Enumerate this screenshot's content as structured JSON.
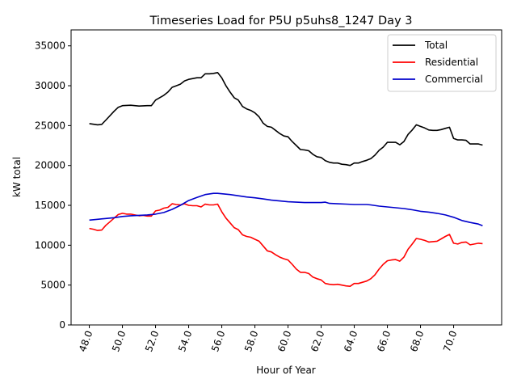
{
  "chart_data": {
    "type": "line",
    "title": "Timeseries Load for P5U p5uhs8_1247  Day 3",
    "xlabel": "Hour of Year",
    "ylabel": "kW total",
    "xlim": [
      46.9,
      72.9
    ],
    "ylim": [
      0,
      37000
    ],
    "xticks": [
      "48.0",
      "50.0",
      "52.0",
      "54.0",
      "56.0",
      "58.0",
      "60.0",
      "62.0",
      "64.0",
      "66.0",
      "68.0",
      "70.0"
    ],
    "xtick_values": [
      48,
      50,
      52,
      54,
      56,
      58,
      60,
      62,
      64,
      66,
      68,
      70
    ],
    "yticks": [
      "0",
      "5000",
      "10000",
      "15000",
      "20000",
      "25000",
      "30000",
      "35000"
    ],
    "ytick_values": [
      0,
      5000,
      10000,
      15000,
      20000,
      25000,
      30000,
      35000
    ],
    "legend_position": "top-right",
    "series": [
      {
        "name": "Total",
        "color": "#000000",
        "points": [
          [
            48,
            25250
          ],
          [
            48.5,
            25100
          ],
          [
            48.75,
            25150
          ],
          [
            49,
            25700
          ],
          [
            49.5,
            26800
          ],
          [
            49.75,
            27300
          ],
          [
            50,
            27500
          ],
          [
            50.5,
            27550
          ],
          [
            50.75,
            27500
          ],
          [
            51,
            27450
          ],
          [
            51.5,
            27500
          ],
          [
            51.75,
            27500
          ],
          [
            52,
            28200
          ],
          [
            52.5,
            28800
          ],
          [
            52.75,
            29200
          ],
          [
            53,
            29800
          ],
          [
            53.25,
            30000
          ],
          [
            53.5,
            30200
          ],
          [
            53.75,
            30600
          ],
          [
            54,
            30800
          ],
          [
            54.5,
            31000
          ],
          [
            54.75,
            31000
          ],
          [
            55,
            31500
          ],
          [
            55.25,
            31500
          ],
          [
            55.5,
            31550
          ],
          [
            55.75,
            31650
          ],
          [
            56,
            31000
          ],
          [
            56.25,
            30000
          ],
          [
            56.5,
            29200
          ],
          [
            56.75,
            28500
          ],
          [
            57,
            28200
          ],
          [
            57.25,
            27400
          ],
          [
            57.5,
            27100
          ],
          [
            57.75,
            26900
          ],
          [
            58,
            26600
          ],
          [
            58.25,
            26100
          ],
          [
            58.5,
            25300
          ],
          [
            58.75,
            24900
          ],
          [
            59,
            24800
          ],
          [
            59.25,
            24400
          ],
          [
            59.5,
            24000
          ],
          [
            59.75,
            23700
          ],
          [
            60,
            23600
          ],
          [
            60.25,
            23000
          ],
          [
            60.5,
            22500
          ],
          [
            60.75,
            22000
          ],
          [
            61,
            21950
          ],
          [
            61.25,
            21850
          ],
          [
            61.5,
            21400
          ],
          [
            61.75,
            21100
          ],
          [
            62,
            21000
          ],
          [
            62.25,
            20600
          ],
          [
            62.5,
            20400
          ],
          [
            62.75,
            20300
          ],
          [
            63,
            20300
          ],
          [
            63.25,
            20150
          ],
          [
            63.5,
            20100
          ],
          [
            63.75,
            20000
          ],
          [
            64,
            20300
          ],
          [
            64.25,
            20300
          ],
          [
            64.5,
            20500
          ],
          [
            64.75,
            20650
          ],
          [
            65,
            20850
          ],
          [
            65.25,
            21300
          ],
          [
            65.5,
            21900
          ],
          [
            65.75,
            22300
          ],
          [
            66,
            22900
          ],
          [
            66.25,
            22900
          ],
          [
            66.5,
            22900
          ],
          [
            66.75,
            22600
          ],
          [
            67,
            23000
          ],
          [
            67.25,
            23900
          ],
          [
            67.5,
            24450
          ],
          [
            67.75,
            25100
          ],
          [
            68,
            24900
          ],
          [
            68.25,
            24700
          ],
          [
            68.5,
            24450
          ],
          [
            68.75,
            24400
          ],
          [
            69,
            24400
          ],
          [
            69.25,
            24500
          ],
          [
            69.5,
            24650
          ],
          [
            69.75,
            24800
          ],
          [
            70,
            23400
          ],
          [
            70.25,
            23200
          ],
          [
            70.5,
            23200
          ],
          [
            70.75,
            23150
          ],
          [
            71,
            22700
          ],
          [
            71.25,
            22700
          ],
          [
            71.5,
            22700
          ],
          [
            71.75,
            22550
          ]
        ]
      },
      {
        "name": "Residential",
        "color": "#ff0000",
        "points": [
          [
            48,
            12100
          ],
          [
            48.25,
            12000
          ],
          [
            48.5,
            11850
          ],
          [
            48.75,
            11900
          ],
          [
            49,
            12500
          ],
          [
            49.25,
            12950
          ],
          [
            49.5,
            13400
          ],
          [
            49.75,
            13850
          ],
          [
            50,
            14000
          ],
          [
            50.25,
            13900
          ],
          [
            50.5,
            13900
          ],
          [
            50.75,
            13800
          ],
          [
            51,
            13700
          ],
          [
            51.25,
            13750
          ],
          [
            51.5,
            13650
          ],
          [
            51.75,
            13650
          ],
          [
            52,
            14300
          ],
          [
            52.25,
            14400
          ],
          [
            52.5,
            14650
          ],
          [
            52.75,
            14750
          ],
          [
            53,
            15200
          ],
          [
            53.25,
            15100
          ],
          [
            53.5,
            15050
          ],
          [
            53.75,
            15200
          ],
          [
            54,
            15000
          ],
          [
            54.25,
            14950
          ],
          [
            54.5,
            14950
          ],
          [
            54.75,
            14800
          ],
          [
            55,
            15150
          ],
          [
            55.25,
            15050
          ],
          [
            55.5,
            15050
          ],
          [
            55.75,
            15150
          ],
          [
            56,
            14200
          ],
          [
            56.25,
            13400
          ],
          [
            56.5,
            12800
          ],
          [
            56.75,
            12200
          ],
          [
            57,
            11950
          ],
          [
            57.25,
            11300
          ],
          [
            57.5,
            11100
          ],
          [
            57.75,
            11000
          ],
          [
            58,
            10750
          ],
          [
            58.25,
            10500
          ],
          [
            58.5,
            9900
          ],
          [
            58.75,
            9300
          ],
          [
            59,
            9150
          ],
          [
            59.25,
            8800
          ],
          [
            59.5,
            8500
          ],
          [
            59.75,
            8300
          ],
          [
            60,
            8150
          ],
          [
            60.25,
            7600
          ],
          [
            60.5,
            7000
          ],
          [
            60.75,
            6600
          ],
          [
            61,
            6600
          ],
          [
            61.25,
            6450
          ],
          [
            61.5,
            6000
          ],
          [
            61.75,
            5800
          ],
          [
            62,
            5650
          ],
          [
            62.25,
            5200
          ],
          [
            62.5,
            5100
          ],
          [
            62.75,
            5050
          ],
          [
            63,
            5100
          ],
          [
            63.25,
            5000
          ],
          [
            63.5,
            4900
          ],
          [
            63.75,
            4850
          ],
          [
            64,
            5200
          ],
          [
            64.25,
            5200
          ],
          [
            64.5,
            5350
          ],
          [
            64.75,
            5500
          ],
          [
            65,
            5800
          ],
          [
            65.25,
            6300
          ],
          [
            65.5,
            7000
          ],
          [
            65.75,
            7600
          ],
          [
            66,
            8050
          ],
          [
            66.25,
            8150
          ],
          [
            66.5,
            8200
          ],
          [
            66.75,
            8000
          ],
          [
            67,
            8500
          ],
          [
            67.25,
            9500
          ],
          [
            67.5,
            10150
          ],
          [
            67.75,
            10850
          ],
          [
            68,
            10750
          ],
          [
            68.25,
            10600
          ],
          [
            68.5,
            10400
          ],
          [
            68.75,
            10450
          ],
          [
            69,
            10500
          ],
          [
            69.25,
            10800
          ],
          [
            69.5,
            11100
          ],
          [
            69.75,
            11350
          ],
          [
            70,
            10250
          ],
          [
            70.25,
            10150
          ],
          [
            70.5,
            10350
          ],
          [
            70.75,
            10400
          ],
          [
            71,
            10050
          ],
          [
            71.25,
            10150
          ],
          [
            71.5,
            10250
          ],
          [
            71.75,
            10200
          ]
        ]
      },
      {
        "name": "Commercial",
        "color": "#0000cc",
        "points": [
          [
            48,
            13150
          ],
          [
            48.5,
            13250
          ],
          [
            49,
            13350
          ],
          [
            49.5,
            13450
          ],
          [
            50,
            13600
          ],
          [
            50.5,
            13700
          ],
          [
            51,
            13750
          ],
          [
            51.5,
            13800
          ],
          [
            52,
            13900
          ],
          [
            52.5,
            14100
          ],
          [
            53,
            14500
          ],
          [
            53.5,
            15000
          ],
          [
            54,
            15600
          ],
          [
            54.5,
            16000
          ],
          [
            55,
            16350
          ],
          [
            55.5,
            16500
          ],
          [
            55.75,
            16500
          ],
          [
            56,
            16450
          ],
          [
            56.5,
            16350
          ],
          [
            57,
            16200
          ],
          [
            57.5,
            16050
          ],
          [
            58,
            15950
          ],
          [
            58.5,
            15800
          ],
          [
            59,
            15650
          ],
          [
            59.5,
            15550
          ],
          [
            60,
            15450
          ],
          [
            60.5,
            15400
          ],
          [
            61,
            15350
          ],
          [
            61.5,
            15350
          ],
          [
            62,
            15350
          ],
          [
            62.25,
            15400
          ],
          [
            62.5,
            15250
          ],
          [
            63,
            15200
          ],
          [
            63.5,
            15150
          ],
          [
            64,
            15100
          ],
          [
            64.5,
            15100
          ],
          [
            64.75,
            15100
          ],
          [
            65,
            15050
          ],
          [
            65.5,
            14900
          ],
          [
            66,
            14800
          ],
          [
            66.5,
            14700
          ],
          [
            67,
            14600
          ],
          [
            67.5,
            14450
          ],
          [
            68,
            14250
          ],
          [
            68.5,
            14150
          ],
          [
            69,
            14000
          ],
          [
            69.5,
            13800
          ],
          [
            70,
            13500
          ],
          [
            70.5,
            13100
          ],
          [
            71,
            12850
          ],
          [
            71.5,
            12650
          ],
          [
            71.75,
            12450
          ]
        ]
      }
    ]
  }
}
